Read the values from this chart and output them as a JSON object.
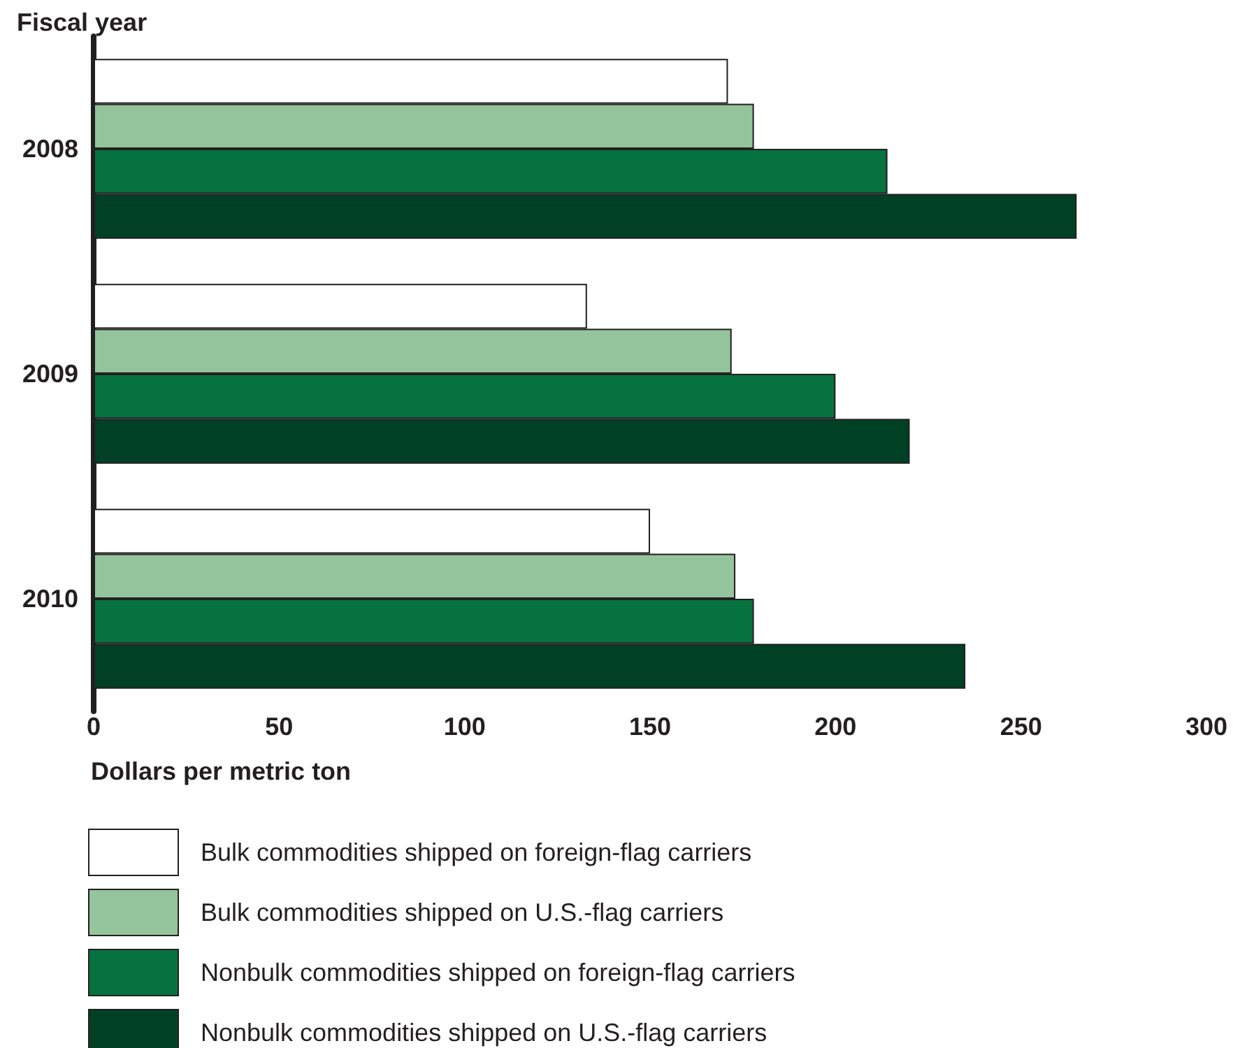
{
  "chart_data": {
    "type": "bar",
    "orientation": "horizontal",
    "ylabel": "Fiscal year",
    "xlabel": "Dollars per metric ton",
    "categories": [
      "2008",
      "2009",
      "2010"
    ],
    "series": [
      {
        "name": "Bulk commodities shipped on foreign-flag carriers",
        "color": "#ffffff",
        "values": [
          171,
          133,
          150
        ]
      },
      {
        "name": "Bulk commodities shipped on U.S.-flag carriers",
        "color": "#94c49b",
        "values": [
          178,
          172,
          173
        ]
      },
      {
        "name": "Nonbulk commodities shipped on foreign-flag carriers",
        "color": "#067240",
        "values": [
          214,
          200,
          178
        ]
      },
      {
        "name": "Nonbulk commodities shipped on U.S.-flag carriers",
        "color": "#004125",
        "values": [
          265,
          220,
          235
        ]
      }
    ],
    "xlim": [
      0,
      300
    ],
    "xticks": [
      0,
      50,
      100,
      150,
      200,
      250,
      300
    ],
    "grid": false,
    "legend": "bottom"
  }
}
